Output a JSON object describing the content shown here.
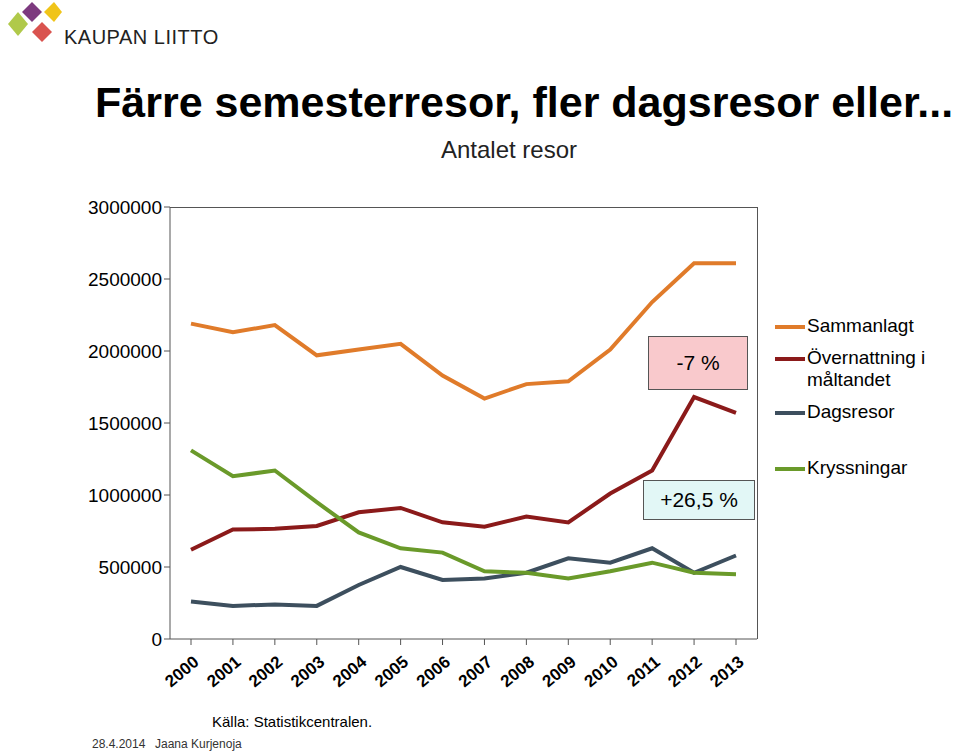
{
  "chart_data": {
    "type": "line",
    "title": "Färre semesterresor, fler dagsresor eller...",
    "subtitle": "Antalet resor",
    "categories": [
      "2000",
      "2001",
      "2002",
      "2003",
      "2004",
      "2005",
      "2006",
      "2007",
      "2008",
      "2009",
      "2010",
      "2011",
      "2012",
      "2013"
    ],
    "series": [
      {
        "name": "Sammanlagt",
        "color": "#e07b2a",
        "values": [
          2190000,
          2130000,
          2180000,
          1970000,
          2010000,
          2050000,
          1830000,
          1670000,
          1770000,
          1790000,
          2010000,
          2340000,
          2610000,
          2610000
        ]
      },
      {
        "name": "Övernattning i måltandet",
        "color": "#8b1a1a",
        "values": [
          620000,
          760000,
          765000,
          785000,
          880000,
          910000,
          810000,
          780000,
          850000,
          810000,
          1010000,
          1170000,
          1680000,
          1570000
        ]
      },
      {
        "name": "Dagsresor",
        "color": "#3d4f5e",
        "values": [
          260000,
          230000,
          240000,
          230000,
          375000,
          500000,
          410000,
          420000,
          460000,
          560000,
          530000,
          630000,
          460000,
          580000
        ]
      },
      {
        "name": "Kryssningar",
        "color": "#6a9a2a",
        "values": [
          1310000,
          1130000,
          1170000,
          950000,
          740000,
          630000,
          600000,
          470000,
          460000,
          420000,
          470000,
          530000,
          460000,
          450000
        ]
      }
    ],
    "ylim": [
      0,
      3000000
    ],
    "yticks": [
      0,
      500000,
      1000000,
      1500000,
      2000000,
      2500000,
      3000000
    ],
    "grid": false,
    "legend": "right",
    "annotations": [
      "-7 %",
      "+26,5 %"
    ],
    "source": "Källa: Statistikcentralen.",
    "date": "28.4.2014",
    "author": "Jaana Kurjenoja",
    "logo": "KAUPAN LIITTO"
  }
}
